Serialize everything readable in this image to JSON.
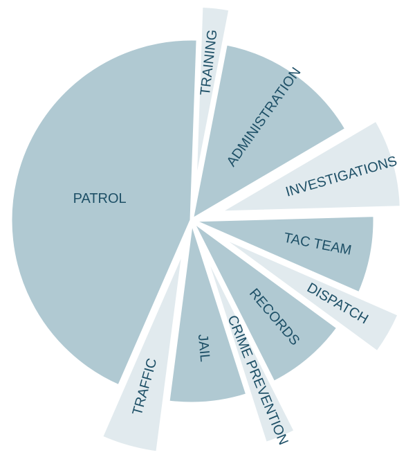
{
  "chart_data": {
    "type": "pie",
    "categories": [
      "TRAINING",
      "ADMINISTRATION",
      "INVESTIGATIONS",
      "TAC TEAM",
      "DISPATCH",
      "RECORDS",
      "CRIME PREVENTION",
      "JAIL",
      "TRAFFIC",
      "PATROL"
    ],
    "values": [
      2.5,
      13.5,
      8,
      7,
      3.5,
      7.5,
      2.5,
      7,
      4.5,
      44
    ],
    "radii": [
      270,
      260,
      265,
      265,
      290,
      263,
      300,
      265,
      300,
      262
    ],
    "exploded": [
      true,
      false,
      true,
      false,
      true,
      false,
      true,
      false,
      true,
      false
    ],
    "colors": [
      "#e1eaee",
      "#b0c9d2",
      "#e1eaee",
      "#b0c9d2",
      "#e1eaee",
      "#b0c9d2",
      "#e1eaee",
      "#b0c9d2",
      "#e1eaee",
      "#b0c9d2"
    ]
  }
}
